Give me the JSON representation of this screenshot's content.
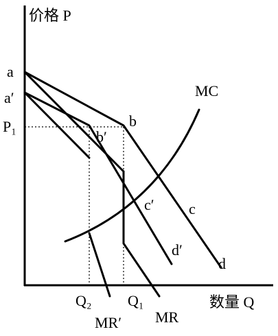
{
  "axes": {
    "y_label": "价格 P",
    "x_label": "数量 Q"
  },
  "labels": {
    "a": "a",
    "a_prime": "a′",
    "p1": "P₁",
    "b": "b",
    "b_prime": "b′",
    "mc": "MC",
    "c_prime": "c′",
    "c": "c",
    "d_prime": "d′",
    "d": "d",
    "q2": "Q₂",
    "q1": "Q₁",
    "mr_prime": "MR′",
    "mr": "MR"
  }
}
